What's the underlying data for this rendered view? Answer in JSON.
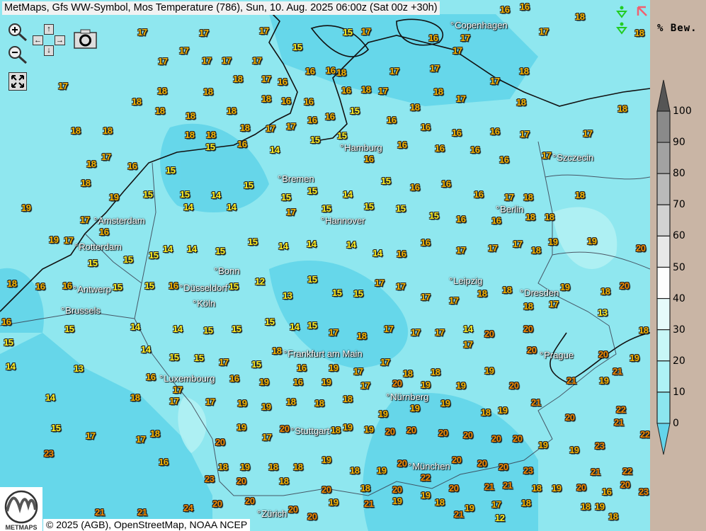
{
  "title": "MetMaps, Gfs WW-Symbol, Mos Temperature (786), Sun, 10. Aug. 2025 06:00z (Sat 00z +30h)",
  "controls": {
    "zoom_in_icon": "magnifier-plus",
    "zoom_out_icon": "magnifier-minus",
    "pan_up": "↑",
    "pan_down": "↓",
    "pan_left": "←",
    "pan_right": "→",
    "camera_icon": "camera",
    "fullscreen_icon": "expand-arrows",
    "top_right_icons": [
      "green-rain-symbol",
      "red-arrow",
      "green-rain-symbol"
    ]
  },
  "colors": {
    "temp_low": "#fff022",
    "temp_mid": "#f6b400",
    "temp_high": "#f28a00",
    "sea": "#8fe7ef",
    "sea_dark": "#62d5e9",
    "panel": "#c9b5a5"
  },
  "cities": [
    "Copenhagen",
    "Szczecin",
    "Hamburg",
    "Bremen",
    "Hannover",
    "Berlin",
    "Amsterdam",
    "Rotterdam",
    "Antwerp",
    "Brussels",
    "Düsseldorf",
    "Köln",
    "Bonn",
    "Leipzig",
    "Dresden",
    "Frankfurt am Main",
    "Luxembourg",
    "Prague",
    "Nürnberg",
    "Stuttgart",
    "München",
    "Zürich"
  ],
  "temperatures": [
    17,
    17,
    17,
    17,
    17,
    17,
    17,
    17,
    15,
    15,
    17,
    16,
    17,
    16,
    16,
    17,
    18,
    18,
    17,
    18,
    18,
    18,
    17,
    16,
    16,
    16,
    18,
    17,
    17,
    17,
    18,
    18,
    18,
    18,
    18,
    18,
    16,
    16,
    16,
    18,
    17,
    18,
    18,
    17,
    17,
    18,
    18,
    18,
    18,
    18,
    18,
    18,
    17,
    17,
    16,
    16,
    15,
    16,
    16,
    16,
    16,
    17,
    17,
    17,
    16,
    15,
    15,
    16,
    14,
    15,
    15,
    16,
    16,
    16,
    16,
    16,
    17,
    18,
    18,
    19,
    19,
    15,
    15,
    14,
    15,
    15,
    15,
    14,
    15,
    16,
    16,
    16,
    17,
    18,
    18,
    17,
    16,
    14,
    14,
    17,
    15,
    15,
    15,
    15,
    16,
    16,
    18,
    18,
    19,
    17,
    15,
    15,
    15,
    14,
    14,
    15,
    15,
    14,
    14,
    14,
    14,
    16,
    16,
    17,
    17,
    17,
    18,
    19,
    19,
    20,
    18,
    16,
    16,
    15,
    15,
    16,
    15,
    12,
    13,
    15,
    15,
    15,
    17,
    17,
    17,
    17,
    18,
    18,
    18,
    17,
    19,
    18,
    20,
    16,
    15,
    14,
    14,
    15,
    15,
    15,
    14,
    15,
    17,
    18,
    17,
    17,
    17,
    14,
    20,
    20,
    13,
    18,
    15,
    14,
    13,
    14,
    15,
    15,
    17,
    15,
    18,
    16,
    19,
    17,
    17,
    18,
    18,
    17,
    19,
    20,
    20,
    19,
    16,
    17,
    16,
    19,
    16,
    19,
    17,
    20,
    19,
    19,
    20,
    21,
    19,
    21,
    14,
    18,
    17,
    17,
    19,
    19,
    18,
    18,
    18,
    19,
    19,
    19,
    18,
    19,
    21,
    20,
    22,
    15,
    17,
    17,
    18,
    20,
    19,
    17,
    20,
    18,
    19,
    19,
    20,
    20,
    20,
    20,
    20,
    20,
    19,
    19,
    23,
    21,
    22,
    23,
    16,
    18,
    19,
    18,
    18,
    19,
    18,
    19,
    20,
    22,
    20,
    20,
    20,
    23,
    21,
    22,
    23,
    20,
    18,
    20,
    18,
    20,
    19,
    20,
    21,
    21,
    18,
    19,
    20,
    16,
    20,
    23,
    24,
    20,
    20,
    20,
    19,
    21,
    19,
    18,
    19,
    17,
    18,
    18,
    19,
    21,
    21,
    20,
    21,
    12,
    18,
    23
  ],
  "legend": {
    "title": "% Bew.",
    "labels": [
      "100",
      "90",
      "80",
      "70",
      "60",
      "50",
      "40",
      "30",
      "20",
      "10",
      "0"
    ],
    "colors": [
      "#6e6e6e",
      "#8a8a8a",
      "#a2a2a2",
      "#bababa",
      "#d2d2d2",
      "#e8e8e8",
      "#fdfdfd",
      "#e6fbfb",
      "#c8f7f7",
      "#aef2f6",
      "#8ce6ef",
      "#64d4ea"
    ]
  },
  "copyright": "© 2025 (AGB), OpenStreetMap, NOAA NCEP",
  "logo_text": "METMAPS"
}
